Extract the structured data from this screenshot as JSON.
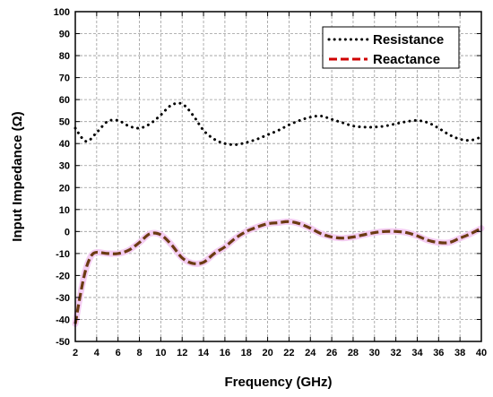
{
  "chart_data": {
    "type": "line",
    "xlabel": "Frequency (GHz)",
    "ylabel": "Input Impedance (Ω)",
    "xlim": [
      2,
      40
    ],
    "ylim": [
      -50,
      100
    ],
    "x_ticks": [
      2,
      4,
      6,
      8,
      10,
      12,
      14,
      16,
      18,
      20,
      22,
      24,
      26,
      28,
      30,
      32,
      34,
      36,
      38,
      40
    ],
    "y_ticks": [
      -50,
      -40,
      -30,
      -20,
      -10,
      0,
      10,
      20,
      30,
      40,
      50,
      60,
      70,
      80,
      90,
      100
    ],
    "grid": true,
    "legend_position": "top-right",
    "series": [
      {
        "name": "Resistance",
        "style": "dotted",
        "color": "#000000",
        "points": [
          [
            2,
            47
          ],
          [
            3,
            41
          ],
          [
            4,
            45
          ],
          [
            5,
            50
          ],
          [
            6,
            50.5
          ],
          [
            7,
            48
          ],
          [
            8,
            47
          ],
          [
            9,
            49
          ],
          [
            10,
            53
          ],
          [
            11,
            57.5
          ],
          [
            12,
            58
          ],
          [
            13,
            53
          ],
          [
            14,
            46
          ],
          [
            15,
            42
          ],
          [
            16,
            40
          ],
          [
            17,
            39.5
          ],
          [
            18,
            40.5
          ],
          [
            19,
            42
          ],
          [
            20,
            44
          ],
          [
            21,
            46
          ],
          [
            22,
            48.5
          ],
          [
            23,
            50.5
          ],
          [
            24,
            52
          ],
          [
            25,
            52.5
          ],
          [
            26,
            51
          ],
          [
            27,
            49.5
          ],
          [
            28,
            48
          ],
          [
            29,
            47.5
          ],
          [
            30,
            47.5
          ],
          [
            31,
            48
          ],
          [
            32,
            49
          ],
          [
            33,
            50
          ],
          [
            34,
            50.5
          ],
          [
            35,
            49.5
          ],
          [
            36,
            47
          ],
          [
            37,
            44
          ],
          [
            38,
            42
          ],
          [
            39,
            41.5
          ],
          [
            40,
            43
          ]
        ]
      },
      {
        "name": "Reactance",
        "style": "dashed",
        "color": "#d00000",
        "points": [
          [
            2,
            -42
          ],
          [
            2.5,
            -28
          ],
          [
            3,
            -17
          ],
          [
            3.5,
            -11
          ],
          [
            4,
            -9.5
          ],
          [
            5,
            -10
          ],
          [
            6,
            -10
          ],
          [
            7,
            -8.5
          ],
          [
            8,
            -5
          ],
          [
            9,
            -1
          ],
          [
            10,
            -1.5
          ],
          [
            11,
            -6
          ],
          [
            12,
            -12
          ],
          [
            13,
            -14.5
          ],
          [
            14,
            -14
          ],
          [
            15,
            -10
          ],
          [
            16,
            -7
          ],
          [
            17,
            -3
          ],
          [
            18,
            0
          ],
          [
            19,
            2
          ],
          [
            20,
            3.5
          ],
          [
            21,
            4
          ],
          [
            22,
            4.5
          ],
          [
            23,
            3.5
          ],
          [
            24,
            1.5
          ],
          [
            25,
            -1
          ],
          [
            26,
            -2.5
          ],
          [
            27,
            -3
          ],
          [
            28,
            -2.5
          ],
          [
            29,
            -1.5
          ],
          [
            30,
            -0.5
          ],
          [
            31,
            0
          ],
          [
            32,
            0
          ],
          [
            33,
            -0.5
          ],
          [
            34,
            -2
          ],
          [
            35,
            -4
          ],
          [
            36,
            -5
          ],
          [
            37,
            -5
          ],
          [
            38,
            -3
          ],
          [
            39,
            -1
          ],
          [
            40,
            1.5
          ]
        ]
      }
    ]
  }
}
